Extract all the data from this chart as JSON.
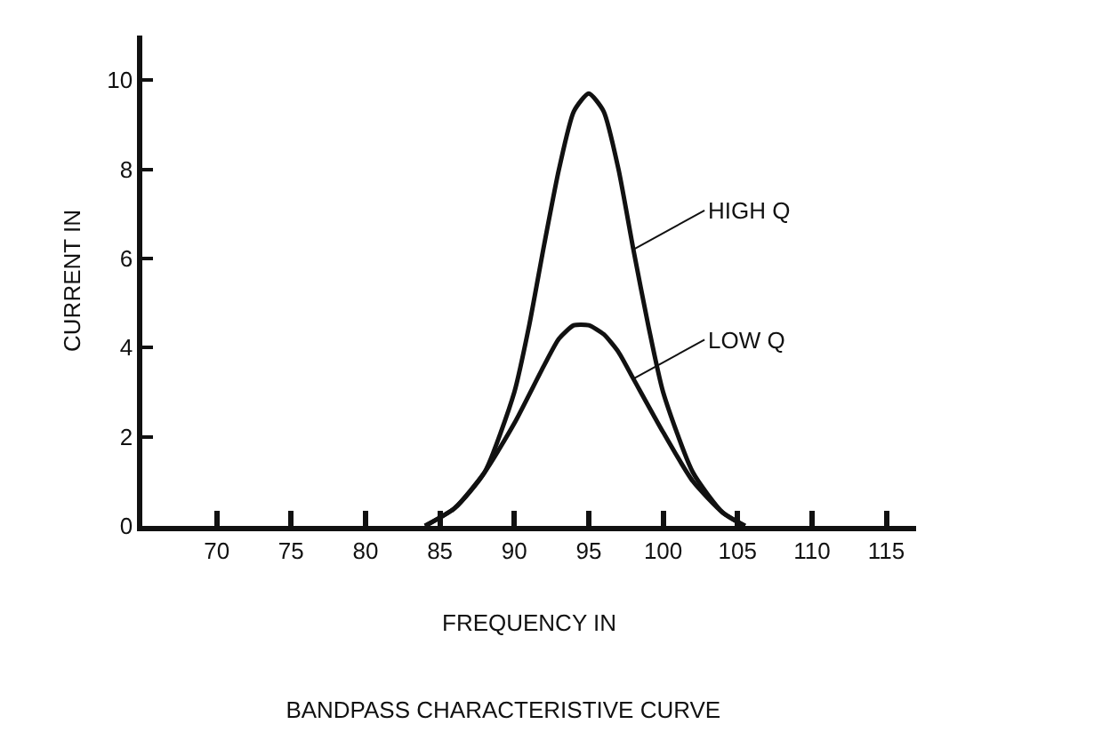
{
  "chart_data": {
    "type": "line",
    "title": "BANDPASS CHARACTERISTIVE CURVE",
    "xlabel": "FREQUENCY IN",
    "ylabel": "CURRENT IN",
    "xlim": [
      65,
      117
    ],
    "xticks": [
      70,
      75,
      80,
      85,
      90,
      95,
      100,
      105,
      110,
      115
    ],
    "ylim": [
      0,
      11
    ],
    "yticks": [
      0,
      2,
      4,
      6,
      8,
      10
    ],
    "grid": false,
    "marker": "none",
    "line_style": "solid",
    "series": [
      {
        "color": "#111111",
        "x": [
          84,
          86,
          88,
          90,
          91,
          92,
          93,
          94,
          95,
          96,
          97,
          98,
          99,
          100,
          102,
          104,
          105.5
        ],
        "values": [
          0,
          0.4,
          1.2,
          3,
          4.5,
          6.3,
          8,
          9.3,
          9.7,
          9.3,
          8,
          6.2,
          4.5,
          3,
          1.2,
          0.3,
          0
        ]
      },
      {
        "color": "#111111",
        "x": [
          84,
          86,
          88,
          90,
          92,
          93,
          94,
          95,
          96,
          97,
          98,
          100,
          102,
          104,
          105.5
        ],
        "values": [
          0,
          0.4,
          1.2,
          2.3,
          3.6,
          4.2,
          4.5,
          4.5,
          4.3,
          3.9,
          3.3,
          2.1,
          1,
          0.3,
          0
        ]
      }
    ],
    "annotations": [
      {
        "text": "HIGH Q",
        "x": 98,
        "y": 6.2
      },
      {
        "text": "LOW Q",
        "x": 98,
        "y": 3.3
      }
    ]
  }
}
